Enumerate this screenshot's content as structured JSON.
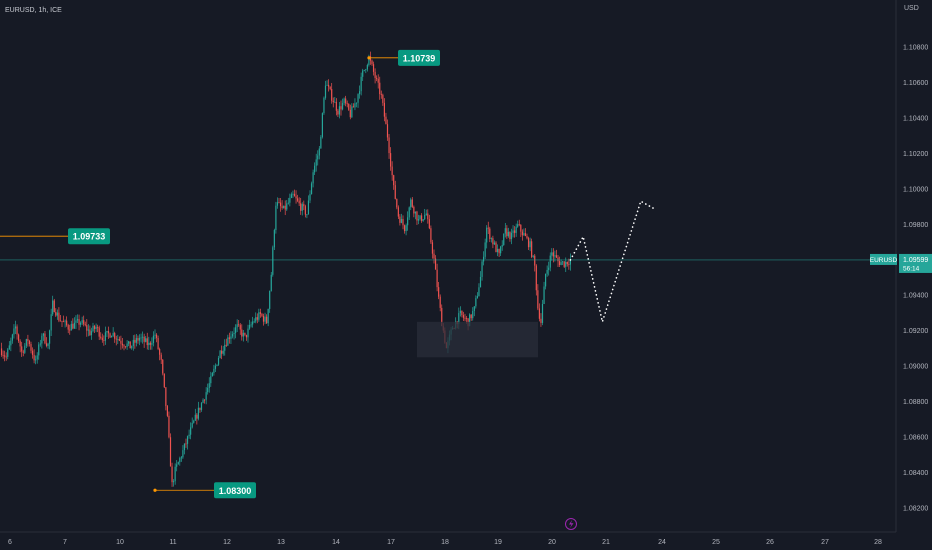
{
  "header": {
    "symbol": "EURUSD, 1h, ICE",
    "currency": "USD"
  },
  "colors": {
    "background": "#161a25",
    "up": "#26a69a",
    "down": "#ef5350",
    "label_bg": "#089981",
    "level_line": "#ff9800",
    "projection": "#ffffff",
    "zone": "#2a2e39"
  },
  "chart_data": {
    "type": "candlestick",
    "symbol": "EURUSD",
    "timeframe": "1h",
    "x_ticks": [
      "6",
      "7",
      "10",
      "11",
      "12",
      "13",
      "14",
      "17",
      "18",
      "19",
      "20",
      "21",
      "24",
      "25",
      "26",
      "27",
      "28"
    ],
    "y_ticks": [
      "1.10800",
      "1.10600",
      "1.10400",
      "1.10200",
      "1.10000",
      "1.09800",
      "1.09600",
      "1.09400",
      "1.09200",
      "1.09000",
      "1.08800",
      "1.08600",
      "1.08400",
      "1.08200"
    ],
    "ylim": [
      1.0812,
      1.1113
    ],
    "current_price": {
      "symbol": "EURUSD",
      "value": "1.09599",
      "countdown": "56:14"
    },
    "annotations": [
      {
        "label": "1.10739",
        "value": 1.10739
      },
      {
        "label": "1.09733",
        "value": 1.09733
      },
      {
        "label": "1.08300",
        "value": 1.083
      }
    ],
    "zone": {
      "from": 1.0905,
      "to": 1.0925
    },
    "path": [
      [
        0,
        1.091
      ],
      [
        4,
        1.0905
      ],
      [
        10,
        1.0922
      ],
      [
        14,
        1.0908
      ],
      [
        18,
        1.0915
      ],
      [
        23,
        1.0902
      ],
      [
        27,
        1.0918
      ],
      [
        31,
        1.0912
      ],
      [
        34,
        1.0935
      ],
      [
        38,
        1.0927
      ],
      [
        44,
        1.0922
      ],
      [
        52,
        1.0925
      ],
      [
        58,
        1.0919
      ],
      [
        62,
        1.0922
      ],
      [
        66,
        1.0916
      ],
      [
        72,
        1.0919
      ],
      [
        78,
        1.0914
      ],
      [
        84,
        1.0911
      ],
      [
        90,
        1.0916
      ],
      [
        96,
        1.0912
      ],
      [
        100,
        1.0918
      ],
      [
        104,
        1.0902
      ],
      [
        108,
        1.087
      ],
      [
        111,
        1.0833
      ],
      [
        113,
        1.0841
      ],
      [
        118,
        1.0852
      ],
      [
        124,
        1.0866
      ],
      [
        130,
        1.0879
      ],
      [
        136,
        1.0892
      ],
      [
        142,
        1.0908
      ],
      [
        148,
        1.0917
      ],
      [
        153,
        1.0922
      ],
      [
        158,
        1.0916
      ],
      [
        163,
        1.0925
      ],
      [
        168,
        1.0929
      ],
      [
        172,
        1.0925
      ],
      [
        175,
        1.0952
      ],
      [
        178,
        1.0992
      ],
      [
        183,
        1.0988
      ],
      [
        189,
        1.0996
      ],
      [
        194,
        1.099
      ],
      [
        198,
        1.0986
      ],
      [
        202,
        1.101
      ],
      [
        206,
        1.1022
      ],
      [
        210,
        1.106
      ],
      [
        214,
        1.1052
      ],
      [
        218,
        1.1044
      ],
      [
        222,
        1.1049
      ],
      [
        226,
        1.1042
      ],
      [
        230,
        1.105
      ],
      [
        234,
        1.1065
      ],
      [
        238,
        1.1074
      ],
      [
        242,
        1.1063
      ],
      [
        246,
        1.1052
      ],
      [
        250,
        1.103
      ],
      [
        254,
        1.1
      ],
      [
        257,
        1.0985
      ],
      [
        261,
        1.0978
      ],
      [
        265,
        1.0993
      ],
      [
        270,
        1.0982
      ],
      [
        275,
        1.0986
      ],
      [
        280,
        1.096
      ],
      [
        283,
        1.0938
      ],
      [
        285,
        1.0925
      ],
      [
        288,
        1.091
      ],
      [
        292,
        1.0922
      ],
      [
        297,
        1.0929
      ],
      [
        302,
        1.0925
      ],
      [
        306,
        1.0932
      ],
      [
        310,
        1.095
      ],
      [
        314,
        1.0978
      ],
      [
        318,
        1.097
      ],
      [
        322,
        1.0962
      ],
      [
        326,
        1.0976
      ],
      [
        330,
        1.0973
      ],
      [
        334,
        1.0979
      ],
      [
        338,
        1.0974
      ],
      [
        342,
        1.0968
      ],
      [
        345,
        1.0956
      ],
      [
        347,
        1.0933
      ],
      [
        349,
        1.0925
      ],
      [
        352,
        1.0952
      ],
      [
        356,
        1.0964
      ],
      [
        360,
        1.0959
      ],
      [
        364,
        1.0958
      ],
      [
        368,
        1.096
      ]
    ],
    "projection": [
      [
        0,
        1.09599
      ],
      [
        4,
        1.0973
      ],
      [
        10,
        1.0925
      ],
      [
        22,
        1.0993
      ],
      [
        24,
        1.0991
      ],
      [
        26,
        1.0989
      ]
    ]
  }
}
